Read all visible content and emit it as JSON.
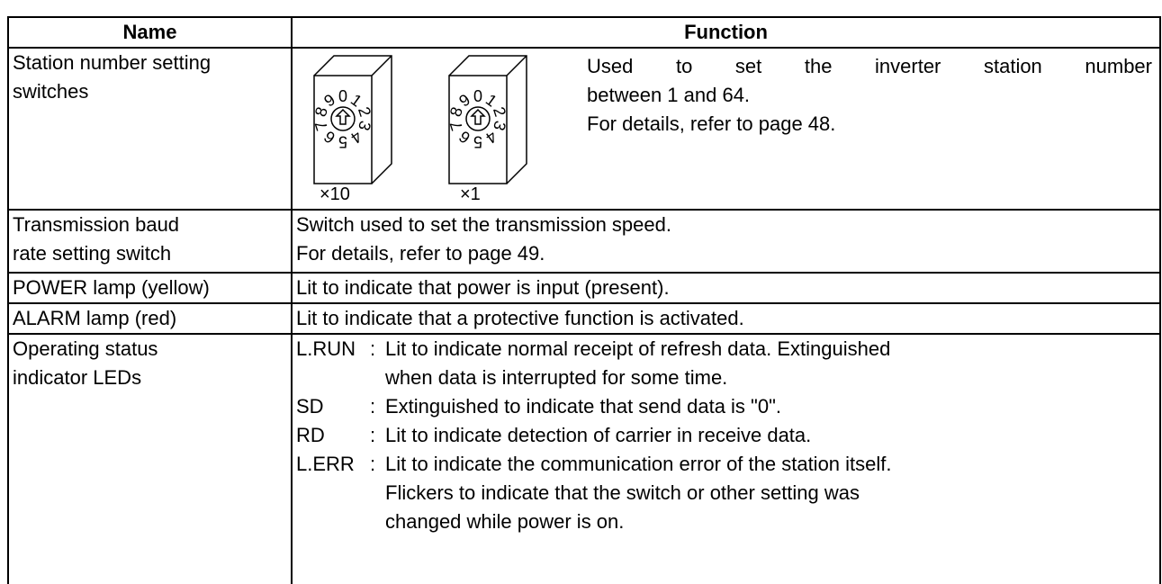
{
  "table": {
    "headers": [
      "Name",
      "Function"
    ],
    "separator": ":",
    "rows": [
      {
        "name": [
          "Station number setting",
          "switches"
        ],
        "function": {
          "dial_digits": [
            "0",
            "1",
            "2",
            "3",
            "4",
            "5",
            "6",
            "7",
            "8",
            "9"
          ],
          "dial_labels": [
            "×10",
            "×1"
          ],
          "lines": [
            "Used to set the inverter station number",
            "between 1 and 64.",
            "For details, refer to page 48."
          ]
        }
      },
      {
        "name": [
          "Transmission baud",
          "rate setting switch"
        ],
        "function": {
          "lines": [
            "Switch used to set the transmission speed.",
            "For details, refer to page 49."
          ]
        }
      },
      {
        "name": [
          "POWER lamp (yellow)"
        ],
        "function": {
          "lines": [
            "Lit to indicate that power is input (present)."
          ]
        }
      },
      {
        "name": [
          "ALARM lamp (red)"
        ],
        "function": {
          "lines": [
            "Lit to indicate that a protective function is activated."
          ]
        }
      },
      {
        "name": [
          "Operating status",
          "indicator LEDs"
        ],
        "function": {
          "items": [
            {
              "label": "L.RUN",
              "lines": [
                "Lit to indicate normal receipt of refresh data. Extinguished",
                "when data is interrupted for some time."
              ]
            },
            {
              "label": "SD",
              "lines": [
                "Extinguished to indicate that send data is \"0\"."
              ]
            },
            {
              "label": "RD",
              "lines": [
                "Lit to indicate detection of carrier in receive data."
              ]
            },
            {
              "label": "L.ERR",
              "lines": [
                "Lit to indicate the communication error of the station itself.",
                "Flickers to indicate that the switch or other setting was",
                "changed while power is on."
              ]
            }
          ]
        }
      }
    ]
  }
}
